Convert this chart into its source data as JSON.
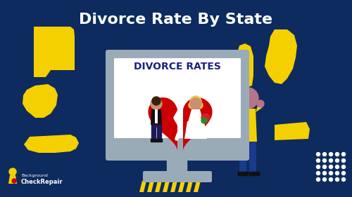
{
  "bg_color": "#0d2b5e",
  "title": "Divorce Rate By State",
  "title_color": "#ffffff",
  "title_fontsize": 16,
  "screen_color": "#9aabb8",
  "screen_face_color": "#ffffff",
  "screen_text": "DIVORCE RATES",
  "screen_text_color": "#1a237e",
  "heart_color": "#cc0000",
  "state_color": "#f5d000",
  "magnifier_ring_color": "#1976d2",
  "person_body_color": "#f5d000",
  "person_head_color": "#b5748a",
  "person_legs_color": "#1a3a8a",
  "logo_color": "#ffffff",
  "stripe_color": "#f5d000",
  "dot_color": "#ffffff",
  "monitor_stand_color": "#8a9aaa",
  "groom_suit_color": "#111111",
  "bride_dress_color": "#ffffff",
  "groom_head_color": "#c89070",
  "bride_head_color": "#d4a050",
  "bouquet_color": "#cc2222"
}
